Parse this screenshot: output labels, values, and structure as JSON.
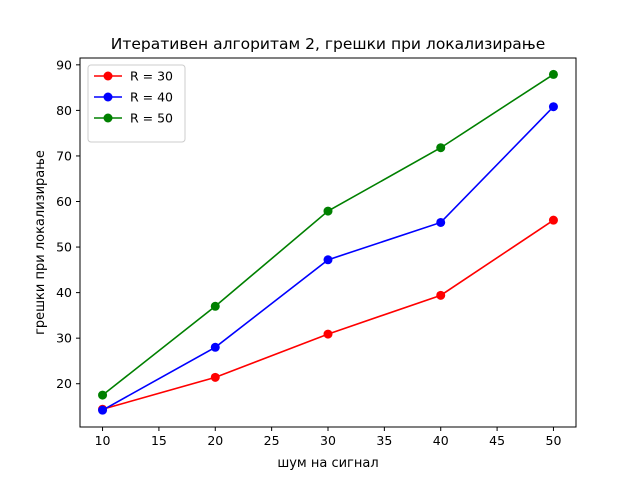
{
  "chart_data": {
    "type": "line",
    "title": "Итеративен алгоритам 2, грешки при локализирање",
    "xlabel": "шум на сигнал",
    "ylabel": "грешки при локализирање",
    "x": [
      10,
      20,
      30,
      40,
      50
    ],
    "xlim": [
      8,
      52
    ],
    "ylim": [
      10.5,
      91.5
    ],
    "xticks": [
      10,
      15,
      20,
      25,
      30,
      35,
      40,
      45,
      50
    ],
    "yticks": [
      20,
      30,
      40,
      50,
      60,
      70,
      80,
      90
    ],
    "grid": false,
    "legend_position": "upper-left",
    "series": [
      {
        "name": "R = 30",
        "color": "#ff0000",
        "values": [
          14.4,
          21.4,
          30.9,
          39.4,
          55.9
        ]
      },
      {
        "name": "R = 40",
        "color": "#0000ff",
        "values": [
          14.2,
          28.0,
          47.2,
          55.4,
          80.8
        ]
      },
      {
        "name": "R = 50",
        "color": "#008000",
        "values": [
          17.5,
          37.0,
          57.9,
          71.8,
          87.9
        ]
      }
    ]
  }
}
